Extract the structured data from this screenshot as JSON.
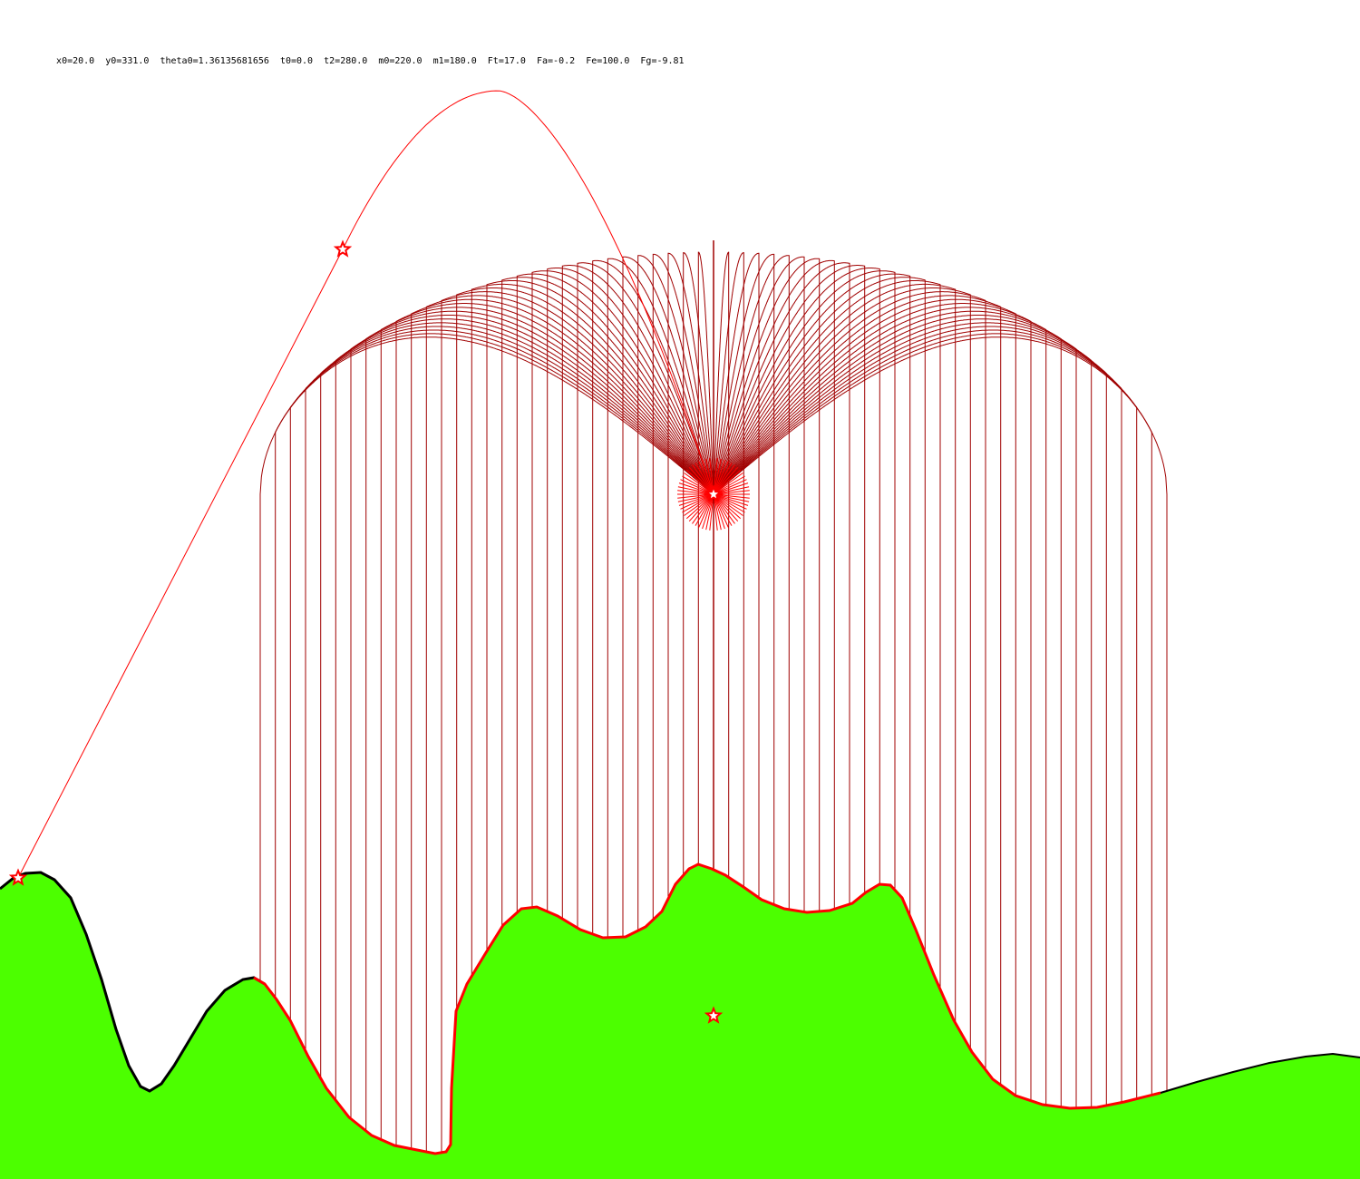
{
  "params": {
    "x0": "20.0",
    "y0": "331.0",
    "theta0": "1.36135681656",
    "t0": "0.0",
    "t2": "280.0",
    "m0": "220.0",
    "m1": "180.0",
    "Ft": "17.0",
    "Fa": "-0.2",
    "Fe": "100.0",
    "Fg": "-9.81"
  },
  "colors": {
    "terrain_fill": "#4cff00",
    "terrain_edge": "#000000",
    "impact_edge": "#ff0000",
    "trajectory": "#ff0000",
    "burst": "#a00000",
    "marker": "#ff0000"
  },
  "markers": [
    "launch-marker",
    "apex-climb-marker",
    "burst-center-marker",
    "ground-marker"
  ]
}
